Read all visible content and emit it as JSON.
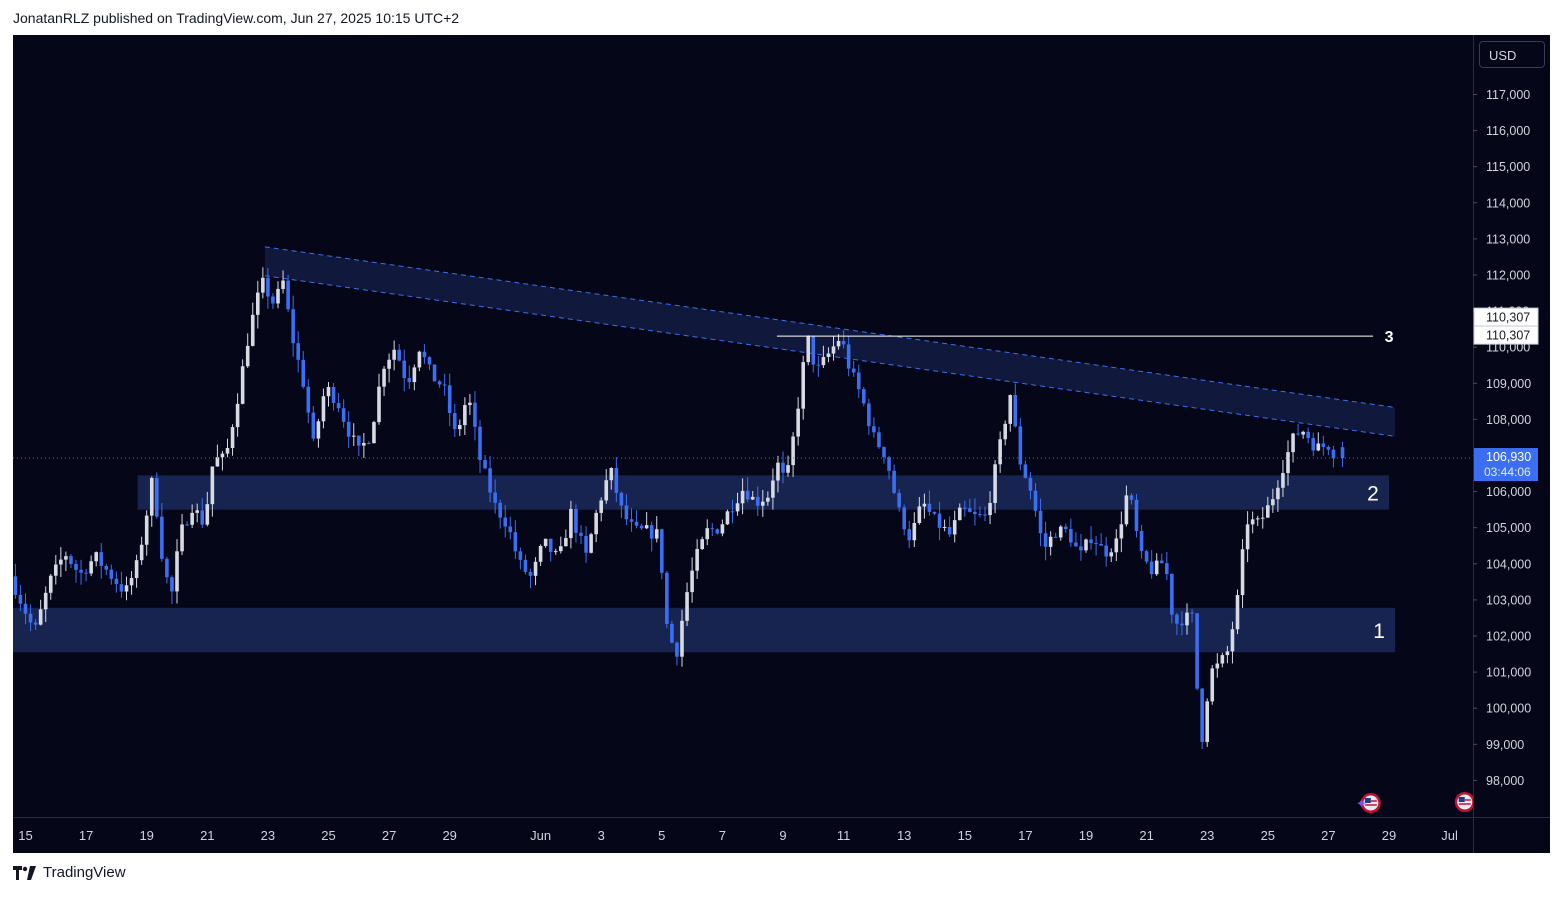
{
  "header": {
    "publisher_line": "JonatanRLZ published on TradingView.com, Jun 27, 2025 10:15 UTC+2"
  },
  "footer": {
    "brand": "TradingView"
  },
  "price_scale": {
    "currency_button": "USD"
  },
  "colors": {
    "background": "#050618",
    "bull_candle": "#d6dae3",
    "bear_candle": "#3c6ef2",
    "zone_fill": "#1c2a5a",
    "channel_line": "#3c6ef2",
    "level_line": "#ffffff"
  },
  "chart_data": {
    "type": "candlestick",
    "symbol_currency": "USD",
    "timeframe": "4H",
    "y_range": [
      97200,
      118800
    ],
    "y_ticks": [
      98000,
      99000,
      100000,
      101000,
      102000,
      103000,
      104000,
      105000,
      106000,
      107000,
      108000,
      109000,
      110000,
      111000,
      112000,
      113000,
      114000,
      115000,
      116000,
      117000
    ],
    "x_axis_labels": [
      {
        "label": "15",
        "day": 0
      },
      {
        "label": "17",
        "day": 2
      },
      {
        "label": "19",
        "day": 4
      },
      {
        "label": "21",
        "day": 6
      },
      {
        "label": "23",
        "day": 8
      },
      {
        "label": "25",
        "day": 10
      },
      {
        "label": "27",
        "day": 12
      },
      {
        "label": "29",
        "day": 14
      },
      {
        "label": "Jun",
        "day": 17
      },
      {
        "label": "3",
        "day": 19
      },
      {
        "label": "5",
        "day": 21
      },
      {
        "label": "7",
        "day": 23
      },
      {
        "label": "9",
        "day": 25
      },
      {
        "label": "11",
        "day": 27
      },
      {
        "label": "13",
        "day": 29
      },
      {
        "label": "15",
        "day": 31
      },
      {
        "label": "17",
        "day": 33
      },
      {
        "label": "19",
        "day": 35
      },
      {
        "label": "21",
        "day": 37
      },
      {
        "label": "23",
        "day": 39
      },
      {
        "label": "25",
        "day": 41
      },
      {
        "label": "27",
        "day": 43
      },
      {
        "label": "29",
        "day": 45
      },
      {
        "label": "Jul",
        "day": 47
      }
    ],
    "last_price": {
      "value": 106930,
      "label": "106,930",
      "countdown": "03:44:06"
    },
    "level_3": {
      "value": 110307,
      "label": "110,307",
      "marker": "3",
      "from_day": 24.8,
      "to_day": 45.2
    },
    "zones": [
      {
        "name": "1",
        "low": 101550,
        "high": 102780,
        "from_day": -0.5,
        "to_day": 45.2
      },
      {
        "name": "2",
        "low": 105500,
        "high": 106450,
        "from_day": 3.7,
        "to_day": 45.0
      }
    ],
    "descending_channel": {
      "upper": [
        {
          "day": 7.9,
          "price": 112780
        },
        {
          "day": 45.2,
          "price": 108330
        }
      ],
      "lower": [
        {
          "day": 7.9,
          "price": 111980
        },
        {
          "day": 45.2,
          "price": 107530
        }
      ]
    },
    "path_points": [
      [
        -0.5,
        103650,
        104100,
        103300
      ],
      [
        0.3,
        102100,
        103500,
        101600
      ],
      [
        0.8,
        103500,
        104600,
        103200
      ],
      [
        1.3,
        104300,
        104700,
        103900
      ],
      [
        1.8,
        103700,
        104500,
        103500
      ],
      [
        2.3,
        104200,
        104600,
        103800
      ],
      [
        2.8,
        103700,
        104200,
        103200
      ],
      [
        3.3,
        103200,
        103700,
        102800
      ],
      [
        3.7,
        104000,
        104300,
        103500
      ],
      [
        4.0,
        105400,
        106000,
        105000
      ],
      [
        4.2,
        106400,
        106600,
        105400
      ],
      [
        4.5,
        104300,
        104700,
        102500
      ],
      [
        4.8,
        103000,
        103500,
        102100
      ],
      [
        5.1,
        104800,
        105300,
        104400
      ],
      [
        5.5,
        105600,
        106000,
        105100
      ],
      [
        5.9,
        105100,
        105600,
        104800
      ],
      [
        6.2,
        106900,
        107300,
        106200
      ],
      [
        6.6,
        106900,
        107300,
        106400
      ],
      [
        7.0,
        108600,
        109000,
        108200
      ],
      [
        7.4,
        110500,
        111300,
        110100
      ],
      [
        7.8,
        111800,
        112100,
        111200
      ],
      [
        8.2,
        111200,
        111700,
        110800
      ],
      [
        8.5,
        111800,
        112000,
        111300
      ],
      [
        8.8,
        110300,
        110900,
        109800
      ],
      [
        9.2,
        108900,
        109300,
        108400
      ],
      [
        9.5,
        107300,
        108100,
        106800
      ],
      [
        9.9,
        108900,
        109200,
        108400
      ],
      [
        10.3,
        108500,
        108900,
        108000
      ],
      [
        10.6,
        107800,
        108300,
        107300
      ],
      [
        11.0,
        107100,
        107600,
        106700
      ],
      [
        11.4,
        107600,
        108100,
        107100
      ],
      [
        11.8,
        109500,
        110200,
        109000
      ],
      [
        12.2,
        110000,
        110400,
        109600
      ],
      [
        12.6,
        109000,
        109500,
        108600
      ],
      [
        13.0,
        110000,
        110400,
        109500
      ],
      [
        13.4,
        109200,
        109700,
        108800
      ],
      [
        13.8,
        108900,
        109300,
        108500
      ],
      [
        14.2,
        107500,
        108100,
        107000
      ],
      [
        14.6,
        108700,
        109100,
        108300
      ],
      [
        15.0,
        106900,
        107500,
        106500
      ],
      [
        15.5,
        105600,
        106200,
        105100
      ],
      [
        15.9,
        105100,
        105700,
        104700
      ],
      [
        16.3,
        104000,
        104500,
        103600
      ],
      [
        16.7,
        103600,
        104000,
        103200
      ],
      [
        17.1,
        104600,
        105000,
        104200
      ],
      [
        17.6,
        104100,
        104500,
        103700
      ],
      [
        18.0,
        105400,
        105900,
        105000
      ],
      [
        18.5,
        104200,
        104600,
        103800
      ],
      [
        18.9,
        105600,
        106000,
        105200
      ],
      [
        19.3,
        106600,
        107000,
        106200
      ],
      [
        19.7,
        105400,
        105900,
        105000
      ],
      [
        20.1,
        104900,
        105300,
        104500
      ],
      [
        20.5,
        104900,
        105300,
        104500
      ],
      [
        20.9,
        104800,
        105200,
        104400
      ],
      [
        21.2,
        102000,
        102600,
        101500
      ],
      [
        21.5,
        101600,
        102100,
        100400
      ],
      [
        21.8,
        103100,
        103600,
        102600
      ],
      [
        22.1,
        104100,
        104700,
        103700
      ],
      [
        22.5,
        104900,
        105300,
        104500
      ],
      [
        22.9,
        105000,
        105400,
        104600
      ],
      [
        23.3,
        105600,
        106000,
        105200
      ],
      [
        23.7,
        106100,
        106500,
        105700
      ],
      [
        24.1,
        105700,
        106100,
        105300
      ],
      [
        24.5,
        105900,
        106300,
        105500
      ],
      [
        24.8,
        106800,
        107300,
        106300
      ],
      [
        25.1,
        106200,
        106600,
        105800
      ],
      [
        25.4,
        107800,
        108200,
        107300
      ],
      [
        25.8,
        110300,
        110500,
        109800
      ],
      [
        26.1,
        109300,
        109700,
        108900
      ],
      [
        26.5,
        109800,
        110300,
        109300
      ],
      [
        26.9,
        110300,
        110500,
        109700
      ],
      [
        27.2,
        109400,
        109900,
        109000
      ],
      [
        27.6,
        108600,
        109100,
        108200
      ],
      [
        28.0,
        107500,
        108100,
        107000
      ],
      [
        28.4,
        107000,
        107500,
        106600
      ],
      [
        28.8,
        105500,
        106200,
        104900
      ],
      [
        29.2,
        104700,
        105200,
        104300
      ],
      [
        29.6,
        105700,
        106200,
        105300
      ],
      [
        30.0,
        105200,
        105700,
        104800
      ],
      [
        30.5,
        104800,
        105300,
        104400
      ],
      [
        30.9,
        105500,
        106000,
        105100
      ],
      [
        31.3,
        105300,
        105800,
        104900
      ],
      [
        31.7,
        105300,
        105800,
        104900
      ],
      [
        32.1,
        107000,
        107500,
        106600
      ],
      [
        32.5,
        108700,
        109000,
        108200
      ],
      [
        32.8,
        106900,
        107400,
        106500
      ],
      [
        33.2,
        106000,
        106500,
        105600
      ],
      [
        33.6,
        104400,
        105000,
        104000
      ],
      [
        34.0,
        104900,
        105400,
        104500
      ],
      [
        34.4,
        104900,
        105400,
        104500
      ],
      [
        34.8,
        104200,
        104700,
        103800
      ],
      [
        35.2,
        104800,
        105300,
        104400
      ],
      [
        35.6,
        104300,
        104800,
        103900
      ],
      [
        36.0,
        104600,
        105100,
        104200
      ],
      [
        36.4,
        106100,
        106400,
        105700
      ],
      [
        36.8,
        104200,
        104700,
        103800
      ],
      [
        37.2,
        103800,
        104300,
        103400
      ],
      [
        37.6,
        104100,
        104500,
        103700
      ],
      [
        37.9,
        102300,
        102900,
        101800
      ],
      [
        38.2,
        102500,
        103000,
        102000
      ],
      [
        38.5,
        102500,
        103000,
        102000
      ],
      [
        38.8,
        99000,
        99800,
        98500
      ],
      [
        39.1,
        101000,
        101500,
        99600
      ],
      [
        39.4,
        101200,
        101700,
        100800
      ],
      [
        39.7,
        101600,
        102100,
        101200
      ],
      [
        40.0,
        103000,
        103500,
        102600
      ],
      [
        40.3,
        105200,
        105700,
        104800
      ],
      [
        40.7,
        105100,
        105600,
        104700
      ],
      [
        41.1,
        105700,
        106200,
        105300
      ],
      [
        41.5,
        106700,
        107100,
        106300
      ],
      [
        41.9,
        107600,
        108000,
        107200
      ],
      [
        42.2,
        107700,
        108100,
        107300
      ],
      [
        42.6,
        107200,
        107600,
        106800
      ],
      [
        43.0,
        107300,
        107700,
        106900
      ],
      [
        43.3,
        106930,
        107400,
        106500
      ]
    ]
  }
}
